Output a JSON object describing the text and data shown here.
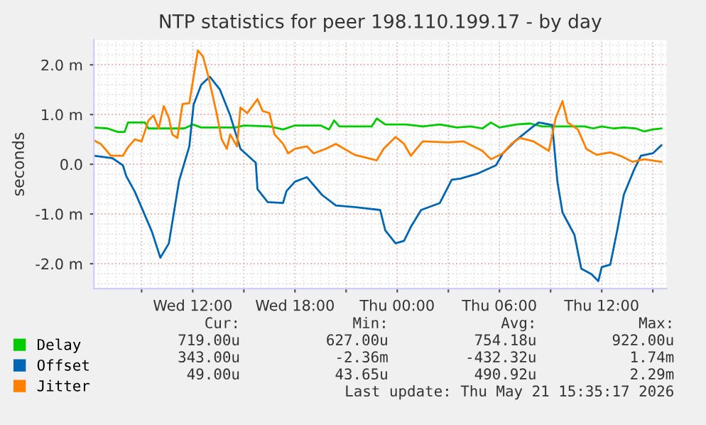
{
  "chart_data": {
    "type": "line",
    "title": "NTP statistics for peer 198.110.199.17 - by day",
    "ylabel": "seconds",
    "xlim": [
      "2026-05-20T06:12",
      "2026-05-21T15:48"
    ],
    "ylim": [
      -2.5,
      2.5
    ],
    "xticks": [
      {
        "value": "2026-05-20T09:00",
        "label": null
      },
      {
        "value": "2026-05-20T12:00",
        "label": "Wed 12:00"
      },
      {
        "value": "2026-05-20T15:00",
        "label": null
      },
      {
        "value": "2026-05-20T18:00",
        "label": "Wed 18:00"
      },
      {
        "value": "2026-05-20T21:00",
        "label": null
      },
      {
        "value": "2026-05-21T00:00",
        "label": "Thu 00:00"
      },
      {
        "value": "2026-05-21T03:00",
        "label": null
      },
      {
        "value": "2026-05-21T06:00",
        "label": "Thu 06:00"
      },
      {
        "value": "2026-05-21T09:00",
        "label": null
      },
      {
        "value": "2026-05-21T12:00",
        "label": "Thu 12:00"
      },
      {
        "value": "2026-05-21T15:00",
        "label": null
      }
    ],
    "yticks": [
      {
        "value": -2,
        "label": "-2.0 m"
      },
      {
        "value": -1,
        "label": "-1.0 m"
      },
      {
        "value": 0,
        "label": "0.0"
      },
      {
        "value": 1,
        "label": "1.0 m"
      },
      {
        "value": 2,
        "label": "2.0 m"
      }
    ],
    "grid": true,
    "legend": "bottom",
    "series": [
      {
        "name": "Delay",
        "color": "#00cc00",
        "x": [
          "2026-05-20T06:12",
          "2026-05-20T07:00",
          "2026-05-20T07:36",
          "2026-05-20T08:00",
          "2026-05-20T08:12",
          "2026-05-20T09:12",
          "2026-05-20T09:24",
          "2026-05-20T11:30",
          "2026-05-20T12:00",
          "2026-05-20T12:30",
          "2026-05-20T14:30",
          "2026-05-20T15:00",
          "2026-05-20T16:30",
          "2026-05-20T17:18",
          "2026-05-20T18:00",
          "2026-05-20T19:30",
          "2026-05-20T20:00",
          "2026-05-20T20:18",
          "2026-05-20T20:36",
          "2026-05-20T21:30",
          "2026-05-20T22:30",
          "2026-05-20T22:48",
          "2026-05-20T23:18",
          "2026-05-21T00:30",
          "2026-05-21T01:30",
          "2026-05-21T02:30",
          "2026-05-21T03:30",
          "2026-05-21T04:18",
          "2026-05-21T05:00",
          "2026-05-21T05:30",
          "2026-05-21T06:00",
          "2026-05-21T07:00",
          "2026-05-21T07:48",
          "2026-05-21T08:30",
          "2026-05-21T10:00",
          "2026-05-21T11:00",
          "2026-05-21T11:30",
          "2026-05-21T12:00",
          "2026-05-21T12:42",
          "2026-05-21T13:18",
          "2026-05-21T14:00",
          "2026-05-21T14:30",
          "2026-05-21T15:00",
          "2026-05-21T15:30"
        ],
        "values": [
          0.74,
          0.72,
          0.65,
          0.65,
          0.84,
          0.84,
          0.72,
          0.72,
          0.8,
          0.74,
          0.74,
          0.78,
          0.76,
          0.7,
          0.78,
          0.78,
          0.7,
          0.88,
          0.76,
          0.76,
          0.76,
          0.92,
          0.8,
          0.8,
          0.76,
          0.8,
          0.74,
          0.76,
          0.72,
          0.84,
          0.74,
          0.8,
          0.82,
          0.76,
          0.76,
          0.76,
          0.72,
          0.76,
          0.72,
          0.74,
          0.72,
          0.66,
          0.7,
          0.72
        ]
      },
      {
        "name": "Offset",
        "color": "#0066b3",
        "x": [
          "2026-05-20T06:12",
          "2026-05-20T07:18",
          "2026-05-20T07:54",
          "2026-05-20T08:06",
          "2026-05-20T08:36",
          "2026-05-20T09:06",
          "2026-05-20T09:36",
          "2026-05-20T10:06",
          "2026-05-20T10:36",
          "2026-05-20T11:12",
          "2026-05-20T11:48",
          "2026-05-20T12:03",
          "2026-05-20T12:30",
          "2026-05-20T13:00",
          "2026-05-20T13:36",
          "2026-05-20T14:12",
          "2026-05-20T14:48",
          "2026-05-20T15:42",
          "2026-05-20T15:48",
          "2026-05-20T16:24",
          "2026-05-20T17:18",
          "2026-05-20T17:30",
          "2026-05-20T18:00",
          "2026-05-20T18:42",
          "2026-05-20T19:36",
          "2026-05-20T20:24",
          "2026-05-20T21:30",
          "2026-05-20T23:00",
          "2026-05-20T23:18",
          "2026-05-20T23:54",
          "2026-05-21T00:24",
          "2026-05-21T00:48",
          "2026-05-21T01:24",
          "2026-05-21T02:30",
          "2026-05-21T03:12",
          "2026-05-21T03:42",
          "2026-05-21T04:42",
          "2026-05-21T05:48",
          "2026-05-21T06:12",
          "2026-05-21T06:54",
          "2026-05-21T07:54",
          "2026-05-21T08:18",
          "2026-05-21T09:06",
          "2026-05-21T09:24",
          "2026-05-21T09:42",
          "2026-05-21T10:24",
          "2026-05-21T10:48",
          "2026-05-21T11:24",
          "2026-05-21T11:48",
          "2026-05-21T12:00",
          "2026-05-21T12:30",
          "2026-05-21T12:54",
          "2026-05-21T13:18",
          "2026-05-21T13:54",
          "2026-05-21T14:18",
          "2026-05-21T15:00",
          "2026-05-21T15:30"
        ],
        "values": [
          0.17,
          0.12,
          -0.02,
          -0.24,
          -0.55,
          -0.95,
          -1.35,
          -1.88,
          -1.59,
          -0.33,
          0.36,
          1.2,
          1.6,
          1.76,
          1.5,
          0.98,
          0.31,
          0.03,
          -0.5,
          -0.76,
          -0.78,
          -0.54,
          -0.35,
          -0.26,
          -0.62,
          -0.83,
          -0.86,
          -0.92,
          -1.33,
          -1.59,
          -1.54,
          -1.26,
          -0.92,
          -0.78,
          -0.31,
          -0.29,
          -0.19,
          -0.02,
          0.22,
          0.46,
          0.74,
          0.84,
          0.79,
          -0.35,
          -0.97,
          -1.42,
          -2.1,
          -2.21,
          -2.35,
          -2.07,
          -2.02,
          -1.35,
          -0.61,
          -0.11,
          0.17,
          0.22,
          0.38
        ]
      },
      {
        "name": "Jitter",
        "color": "#ff8000",
        "x": [
          "2026-05-20T06:12",
          "2026-05-20T06:36",
          "2026-05-20T07:12",
          "2026-05-20T07:54",
          "2026-05-20T08:12",
          "2026-05-20T08:36",
          "2026-05-20T09:00",
          "2026-05-20T09:24",
          "2026-05-20T09:42",
          "2026-05-20T10:00",
          "2026-05-20T10:18",
          "2026-05-20T10:36",
          "2026-05-20T10:48",
          "2026-05-20T11:06",
          "2026-05-20T11:24",
          "2026-05-20T11:48",
          "2026-05-20T12:18",
          "2026-05-20T12:36",
          "2026-05-20T12:54",
          "2026-05-20T13:24",
          "2026-05-20T13:42",
          "2026-05-20T14:00",
          "2026-05-20T14:12",
          "2026-05-20T14:36",
          "2026-05-20T14:48",
          "2026-05-20T15:12",
          "2026-05-20T15:48",
          "2026-05-20T16:06",
          "2026-05-20T16:30",
          "2026-05-20T16:48",
          "2026-05-20T17:18",
          "2026-05-20T17:36",
          "2026-05-20T18:00",
          "2026-05-20T18:42",
          "2026-05-20T19:06",
          "2026-05-20T19:48",
          "2026-05-20T20:24",
          "2026-05-20T20:54",
          "2026-05-20T21:30",
          "2026-05-20T22:48",
          "2026-05-20T23:12",
          "2026-05-20T23:54",
          "2026-05-21T00:24",
          "2026-05-21T00:48",
          "2026-05-21T01:30",
          "2026-05-21T03:00",
          "2026-05-21T03:54",
          "2026-05-21T05:00",
          "2026-05-21T05:30",
          "2026-05-21T06:12",
          "2026-05-21T06:42",
          "2026-05-21T07:12",
          "2026-05-21T08:00",
          "2026-05-21T08:54",
          "2026-05-21T09:18",
          "2026-05-21T09:42",
          "2026-05-21T10:00",
          "2026-05-21T10:36",
          "2026-05-21T11:06",
          "2026-05-21T11:42",
          "2026-05-21T12:30",
          "2026-05-21T13:06",
          "2026-05-21T13:48",
          "2026-05-21T14:30",
          "2026-05-21T15:30"
        ],
        "values": [
          0.48,
          0.41,
          0.17,
          0.17,
          0.34,
          0.5,
          0.46,
          0.88,
          0.98,
          0.72,
          1.17,
          0.93,
          0.6,
          0.53,
          1.21,
          1.23,
          2.29,
          2.17,
          1.79,
          1.03,
          0.5,
          0.31,
          0.6,
          0.36,
          1.14,
          1.03,
          1.31,
          1.07,
          1.03,
          0.6,
          0.41,
          0.22,
          0.31,
          0.36,
          0.22,
          0.31,
          0.41,
          0.31,
          0.19,
          0.08,
          0.31,
          0.55,
          0.41,
          0.17,
          0.46,
          0.44,
          0.46,
          0.27,
          0.1,
          0.22,
          0.41,
          0.53,
          0.46,
          0.27,
          0.93,
          1.27,
          0.84,
          0.7,
          0.31,
          0.19,
          0.24,
          0.17,
          0.05,
          0.1,
          0.05
        ]
      }
    ],
    "annotations": [
      "Cur:",
      "Min:",
      "Avg:",
      "Max:",
      "719.00u",
      "627.00u",
      "754.18u",
      "922.00u",
      "343.00u",
      "-2.36m",
      "-432.32u",
      "1.74m",
      "49.00u",
      "43.65u",
      "490.92u",
      "2.29m",
      "Last update: Thu May 21 15:35:17 2026"
    ]
  }
}
